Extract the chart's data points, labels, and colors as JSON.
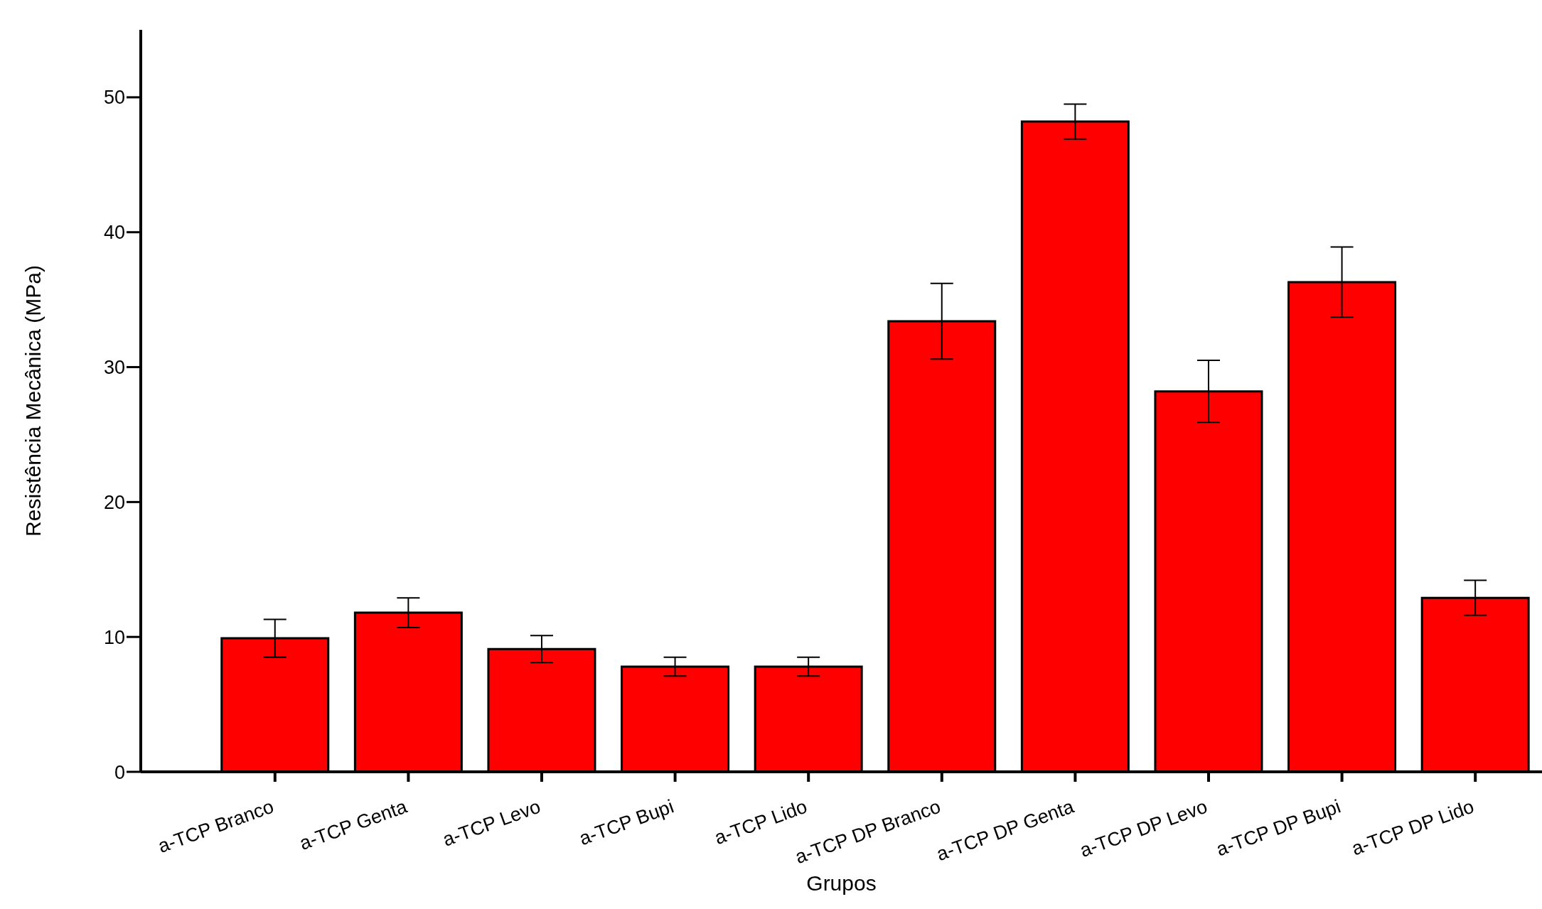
{
  "chart_data": {
    "type": "bar",
    "xlabel": "Grupos",
    "ylabel": "Resistência Mecânica (MPa)",
    "categories": [
      "a-TCP Branco",
      "a-TCP Genta",
      "a-TCP Levo",
      "a-TCP Bupi",
      "a-TCP Lido",
      "a-TCP DP Branco",
      "a-TCP DP Genta",
      "a-TCP DP Levo",
      "a-TCP DP Bupi",
      "a-TCP DP Lido"
    ],
    "values": [
      9.9,
      11.8,
      9.1,
      7.8,
      7.8,
      33.4,
      48.2,
      28.2,
      36.3,
      12.9
    ],
    "errors": [
      1.4,
      1.1,
      1.0,
      0.7,
      0.7,
      2.8,
      1.3,
      2.3,
      2.6,
      1.3
    ],
    "color": "#ff0000",
    "ylim": [
      0,
      55
    ],
    "yticks": [
      0,
      10,
      20,
      30,
      40,
      50
    ]
  }
}
